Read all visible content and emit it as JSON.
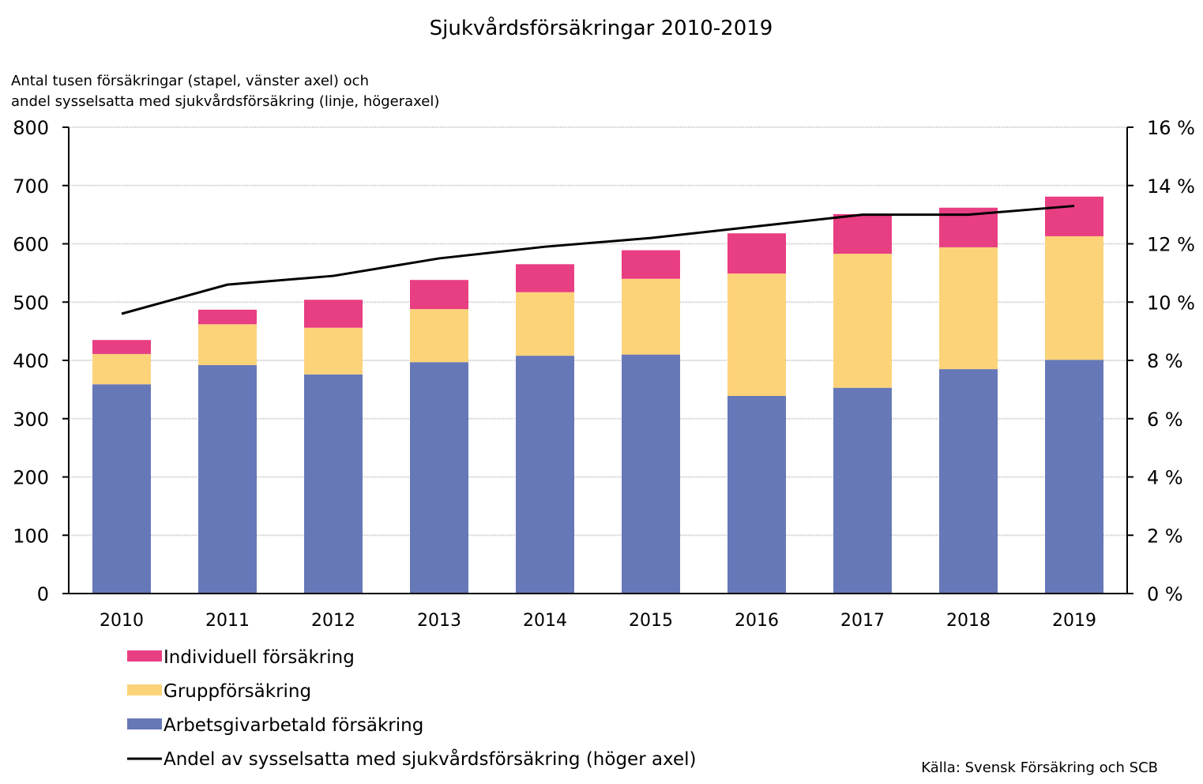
{
  "chart_data": {
    "type": "bar",
    "stacked": true,
    "title": "Sjukvårdsförsäkringar 2010-2019",
    "subtitle_lines": [
      "Antal tusen försäkringar (stapel, vänster axel) och",
      "andel sysselsatta med sjukvårdsförsäkring (linje, högeraxel)"
    ],
    "categories": [
      "2010",
      "2011",
      "2012",
      "2013",
      "2014",
      "2015",
      "2016",
      "2017",
      "2018",
      "2019"
    ],
    "series": [
      {
        "name": "Arbetsgivarbetald försäkring",
        "type": "bar",
        "axis": "left",
        "color": "#6778B8",
        "values": [
          359,
          392,
          376,
          397,
          408,
          410,
          339,
          353,
          385,
          401
        ]
      },
      {
        "name": "Gruppförsäkring",
        "type": "bar",
        "axis": "left",
        "color": "#FDD37A",
        "values": [
          52,
          70,
          80,
          91,
          109,
          130,
          210,
          230,
          209,
          212
        ]
      },
      {
        "name": "Individuell försäkring",
        "type": "bar",
        "axis": "left",
        "color": "#E83E82",
        "values": [
          24,
          25,
          48,
          50,
          48,
          49,
          69,
          68,
          68,
          68
        ]
      },
      {
        "name": "Andel av sysselsatta med sjukvårdsförsäkring (höger axel)",
        "type": "line",
        "axis": "right",
        "color": "#000000",
        "values": [
          9.6,
          10.6,
          10.9,
          11.5,
          11.9,
          12.2,
          12.6,
          13.0,
          13.0,
          13.3
        ]
      }
    ],
    "left_axis": {
      "ylim": [
        0,
        800
      ],
      "ticks": [
        "0",
        "100",
        "200",
        "300",
        "400",
        "500",
        "600",
        "700",
        "800"
      ]
    },
    "right_axis": {
      "ylim": [
        0,
        16
      ],
      "ticks": [
        "0 %",
        "2 %",
        "4 %",
        "6 %",
        "8 %",
        "10 %",
        "12 %",
        "14 %",
        "16 %"
      ]
    },
    "grid": true,
    "legend": {
      "placement": "bottom-left",
      "order": [
        2,
        1,
        0,
        3
      ]
    },
    "source": "Källa: Svensk Försäkring och SCB"
  }
}
